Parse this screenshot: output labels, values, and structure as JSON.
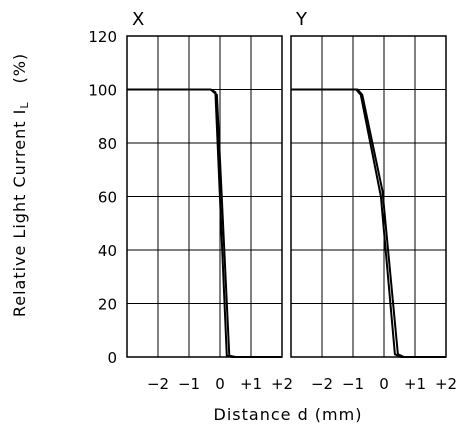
{
  "chart_data": {
    "type": "line",
    "ylabel": "Relative  Light  Current  I",
    "ylabel_subscript": "L",
    "ylabel_unit": "(%)",
    "xlabel": "Distance  d  (mm)",
    "ylim": [
      0,
      120
    ],
    "y_ticks": [
      "0",
      "20",
      "40",
      "60",
      "80",
      "100",
      "120"
    ],
    "y_tick_values": [
      0,
      20,
      40,
      60,
      80,
      100,
      120
    ],
    "xlim": [
      -3,
      2
    ],
    "x_tick_values": [
      -2,
      -1,
      0,
      1,
      2
    ],
    "x_tick_labels": [
      "−2",
      "−1",
      "0",
      "+1",
      "+2"
    ],
    "grid": true,
    "panels": [
      {
        "title": "X",
        "series": [
          {
            "values": [
              [
                -3,
                100
              ],
              [
                -0.3,
                100
              ],
              [
                -0.15,
                99
              ],
              [
                0.22,
                0.5
              ],
              [
                0.4,
                0
              ],
              [
                2,
                0
              ]
            ]
          },
          {
            "values": [
              [
                -3,
                100
              ],
              [
                -0.3,
                100
              ],
              [
                -0.1,
                98
              ],
              [
                0.3,
                0.5
              ],
              [
                0.5,
                0
              ],
              [
                2,
                0
              ]
            ]
          }
        ]
      },
      {
        "title": "Y",
        "series": [
          {
            "values": [
              [
                -3,
                100
              ],
              [
                -0.9,
                100
              ],
              [
                -0.75,
                98
              ],
              [
                -0.1,
                60
              ],
              [
                0.35,
                1
              ],
              [
                0.55,
                0
              ],
              [
                2,
                0
              ]
            ]
          },
          {
            "values": [
              [
                -3,
                100
              ],
              [
                -0.85,
                100
              ],
              [
                -0.7,
                98
              ],
              [
                -0.05,
                62
              ],
              [
                0.45,
                1
              ],
              [
                0.65,
                0
              ],
              [
                2,
                0
              ]
            ]
          }
        ]
      }
    ]
  }
}
